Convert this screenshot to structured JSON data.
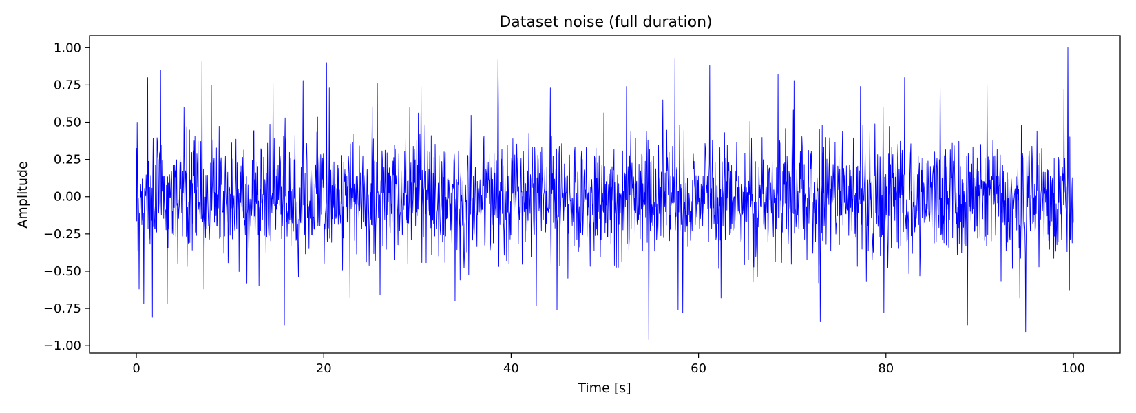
{
  "chart_data": {
    "type": "line",
    "title": "Dataset noise (full duration)",
    "xlabel": "Time [s]",
    "ylabel": "Amplitude",
    "xlim": [
      -5,
      105
    ],
    "ylim": [
      -1.05,
      1.08
    ],
    "grid": false,
    "line_color": "#0000ff",
    "x_ticks": [
      {
        "value": 0,
        "label": "0"
      },
      {
        "value": 20,
        "label": "20"
      },
      {
        "value": 40,
        "label": "40"
      },
      {
        "value": 60,
        "label": "60"
      },
      {
        "value": 80,
        "label": "80"
      },
      {
        "value": 100,
        "label": "100"
      }
    ],
    "y_ticks": [
      {
        "value": 1.0,
        "label": "1.00"
      },
      {
        "value": 0.75,
        "label": "0.75"
      },
      {
        "value": 0.5,
        "label": "0.50"
      },
      {
        "value": 0.25,
        "label": "0.25"
      },
      {
        "value": 0.0,
        "label": "0.00"
      },
      {
        "value": -0.25,
        "label": "−0.25"
      },
      {
        "value": -0.5,
        "label": "−0.50"
      },
      {
        "value": -0.75,
        "label": "−0.75"
      },
      {
        "value": -1.0,
        "label": "−1.00"
      }
    ],
    "series": [
      {
        "x_start": 0,
        "x_end": 100,
        "sample_count": 2400,
        "peaks": [
          {
            "x": 0.1,
            "y": 0.5
          },
          {
            "x": 0.3,
            "y": -0.62
          },
          {
            "x": 0.8,
            "y": -0.72
          },
          {
            "x": 1.2,
            "y": 0.8
          },
          {
            "x": 1.7,
            "y": -0.81
          },
          {
            "x": 2.6,
            "y": 0.85
          },
          {
            "x": 3.3,
            "y": -0.72
          },
          {
            "x": 7.0,
            "y": 0.91
          },
          {
            "x": 7.2,
            "y": -0.62
          },
          {
            "x": 8.0,
            "y": 0.75
          },
          {
            "x": 11.8,
            "y": -0.58
          },
          {
            "x": 14.6,
            "y": 0.76
          },
          {
            "x": 15.8,
            "y": -0.86
          },
          {
            "x": 17.8,
            "y": 0.78
          },
          {
            "x": 20.3,
            "y": 0.9
          },
          {
            "x": 20.6,
            "y": 0.73
          },
          {
            "x": 22.8,
            "y": -0.68
          },
          {
            "x": 25.7,
            "y": 0.76
          },
          {
            "x": 26.0,
            "y": -0.66
          },
          {
            "x": 30.4,
            "y": 0.74
          },
          {
            "x": 34.0,
            "y": -0.7
          },
          {
            "x": 38.6,
            "y": 0.92
          },
          {
            "x": 42.7,
            "y": -0.73
          },
          {
            "x": 44.2,
            "y": 0.73
          },
          {
            "x": 44.9,
            "y": -0.76
          },
          {
            "x": 52.3,
            "y": 0.74
          },
          {
            "x": 54.7,
            "y": -0.96
          },
          {
            "x": 56.2,
            "y": 0.65
          },
          {
            "x": 57.5,
            "y": 0.93
          },
          {
            "x": 57.8,
            "y": -0.76
          },
          {
            "x": 58.3,
            "y": -0.78
          },
          {
            "x": 61.2,
            "y": 0.88
          },
          {
            "x": 62.4,
            "y": -0.68
          },
          {
            "x": 68.5,
            "y": 0.82
          },
          {
            "x": 70.2,
            "y": 0.78
          },
          {
            "x": 73.0,
            "y": -0.84
          },
          {
            "x": 77.3,
            "y": 0.74
          },
          {
            "x": 79.8,
            "y": -0.78
          },
          {
            "x": 82.0,
            "y": 0.8
          },
          {
            "x": 85.8,
            "y": 0.78
          },
          {
            "x": 88.7,
            "y": -0.86
          },
          {
            "x": 90.8,
            "y": 0.75
          },
          {
            "x": 94.3,
            "y": -0.68
          },
          {
            "x": 94.9,
            "y": -0.91
          },
          {
            "x": 99.0,
            "y": 0.72
          },
          {
            "x": 99.4,
            "y": 1.0
          },
          {
            "x": 99.6,
            "y": -0.63
          }
        ]
      }
    ]
  }
}
